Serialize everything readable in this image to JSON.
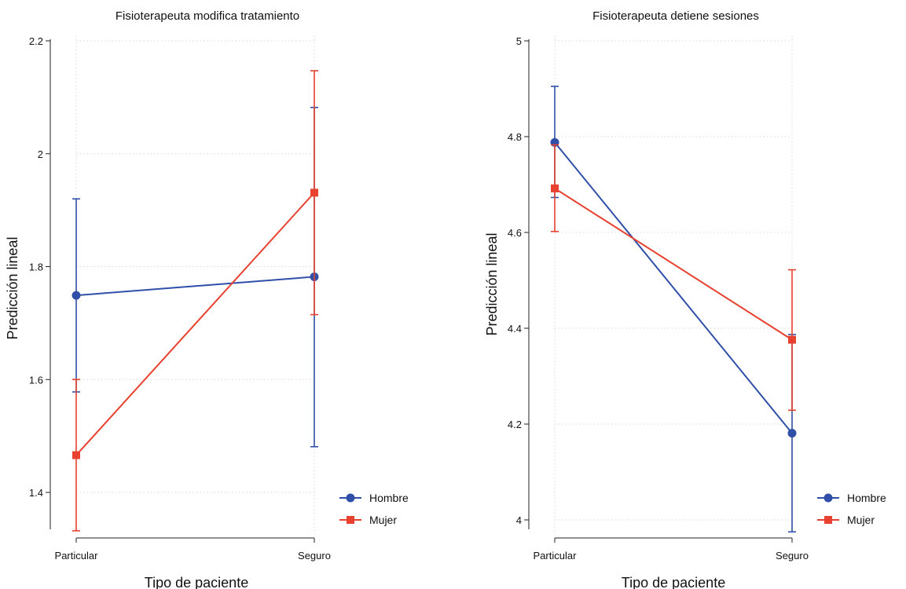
{
  "chart_data": [
    {
      "type": "line",
      "title": "Fisioterapeuta modifica tratamiento",
      "xlabel": "Tipo de paciente",
      "ylabel": "Predicción lineal",
      "categories": [
        "Particular",
        "Seguro"
      ],
      "ylim": [
        1.33,
        2.2
      ],
      "yticks": [
        1.4,
        1.6,
        1.8,
        2.0,
        2.2
      ],
      "ytick_labels": [
        "1.4",
        "1.6",
        "1.8",
        "2",
        "2.2"
      ],
      "grid": true,
      "legend_position": "bottom-right",
      "series": [
        {
          "name": "Hombre",
          "color": "#2f4fa8",
          "marker": "circle",
          "values": [
            1.749,
            1.782
          ],
          "lower": [
            1.578,
            1.481
          ],
          "upper": [
            1.92,
            2.082
          ]
        },
        {
          "name": "Mujer",
          "color": "#e8412f",
          "marker": "square",
          "values": [
            1.466,
            1.931
          ],
          "lower": [
            1.332,
            1.715
          ],
          "upper": [
            1.6,
            2.147
          ]
        }
      ]
    },
    {
      "type": "line",
      "title": "Fisioterapeuta detiene sesiones",
      "xlabel": "Tipo de paciente",
      "ylabel": "Predicción lineal",
      "categories": [
        "Particular",
        "Seguro"
      ],
      "ylim": [
        3.975,
        5.0
      ],
      "yticks": [
        4.0,
        4.2,
        4.4,
        4.6,
        4.8,
        5.0
      ],
      "ytick_labels": [
        "4",
        "4.2",
        "4.4",
        "4.6",
        "4.8",
        "5"
      ],
      "grid": true,
      "legend_position": "bottom-right",
      "series": [
        {
          "name": "Hombre",
          "color": "#2f4fa8",
          "marker": "circle",
          "values": [
            4.788,
            4.181
          ],
          "lower": [
            4.673,
            3.975
          ],
          "upper": [
            4.905,
            4.387
          ]
        },
        {
          "name": "Mujer",
          "color": "#e8412f",
          "marker": "square",
          "values": [
            4.692,
            4.376
          ],
          "lower": [
            4.602,
            4.229
          ],
          "upper": [
            4.783,
            4.522
          ]
        }
      ]
    }
  ]
}
